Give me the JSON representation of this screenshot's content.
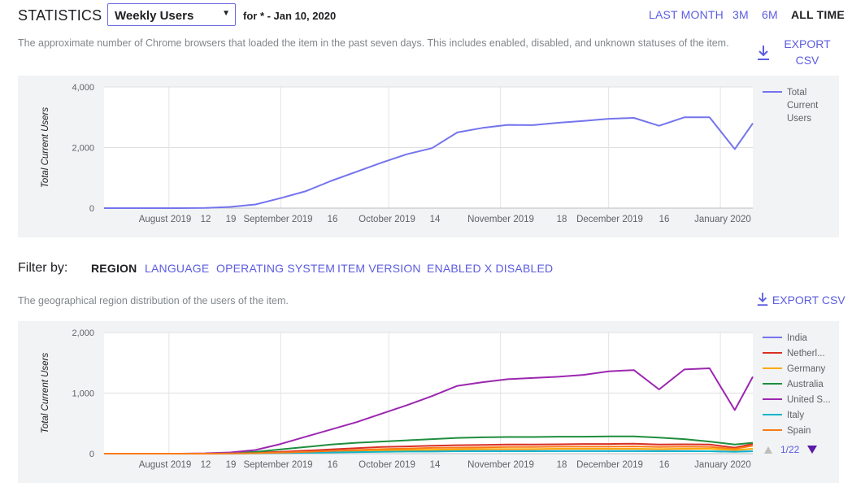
{
  "header": {
    "title": "STATISTICS",
    "metric_select": "Weekly Users",
    "for_text": "for * - Jan 10, 2020",
    "ranges": [
      "LAST MONTH",
      "3M",
      "6M",
      "ALL TIME"
    ],
    "active_range": "ALL TIME"
  },
  "section1": {
    "description": "The approximate number of Chrome browsers that loaded the item in the past seven days. This includes enabled, disabled, and unknown statuses of the item.",
    "export_label": "EXPORT CSV"
  },
  "filter": {
    "label": "Filter by:",
    "tabs": [
      "REGION",
      "LANGUAGE",
      "OPERATING SYSTEM",
      "ITEM VERSION",
      "ENABLED X DISABLED"
    ],
    "active_tab": "REGION"
  },
  "section2": {
    "description": "The geographical region distribution of the users of the item.",
    "export_label": "EXPORT CSV",
    "pager": "1/22"
  },
  "icons": {
    "download": "download-icon",
    "dropdown": "chevron-down-icon",
    "pager_up": "triangle-up-icon",
    "pager_down": "triangle-down-icon"
  },
  "colors": {
    "accent": "#5c5ce0",
    "panel_bg": "#f1f3f4"
  },
  "chart_data": [
    {
      "type": "line",
      "title": "",
      "xlabel": "",
      "ylabel": "Total Current Users",
      "ylim": [
        0,
        4000
      ],
      "y_ticks": [
        "0",
        "2,000",
        "4,000"
      ],
      "x_tick_labels": [
        "August 2019",
        "12",
        "19",
        "September 2019",
        "16",
        "October 2019",
        "14",
        "November 2019",
        "18",
        "December 2019",
        "16",
        "January 2020"
      ],
      "x": [
        "2019-07-14",
        "2019-07-21",
        "2019-07-28",
        "2019-08-04",
        "2019-08-11",
        "2019-08-18",
        "2019-08-25",
        "2019-09-01",
        "2019-09-08",
        "2019-09-15",
        "2019-09-22",
        "2019-09-29",
        "2019-10-06",
        "2019-10-13",
        "2019-10-20",
        "2019-10-27",
        "2019-11-03",
        "2019-11-10",
        "2019-11-17",
        "2019-11-24",
        "2019-12-01",
        "2019-12-08",
        "2019-12-15",
        "2019-12-22",
        "2019-12-29",
        "2020-01-05",
        "2020-01-10"
      ],
      "legend": "right",
      "series": [
        {
          "name": "Total Current Users",
          "color": "#7474ee",
          "values": [
            0,
            0,
            0,
            0,
            5,
            40,
            120,
            330,
            560,
            900,
            1200,
            1500,
            1780,
            1980,
            2500,
            2650,
            2750,
            2740,
            2820,
            2880,
            2950,
            2980,
            2720,
            3000,
            3000,
            1950,
            2800
          ]
        }
      ]
    },
    {
      "type": "line",
      "title": "",
      "xlabel": "",
      "ylabel": "Total Current Users",
      "ylim": [
        0,
        2000
      ],
      "y_ticks": [
        "0",
        "1,000",
        "2,000"
      ],
      "x_tick_labels": [
        "August 2019",
        "12",
        "19",
        "September 2019",
        "16",
        "October 2019",
        "14",
        "November 2019",
        "18",
        "December 2019",
        "16",
        "January 2020"
      ],
      "x": [
        "2019-07-14",
        "2019-07-21",
        "2019-07-28",
        "2019-08-04",
        "2019-08-11",
        "2019-08-18",
        "2019-08-25",
        "2019-09-01",
        "2019-09-08",
        "2019-09-15",
        "2019-09-22",
        "2019-09-29",
        "2019-10-06",
        "2019-10-13",
        "2019-10-20",
        "2019-10-27",
        "2019-11-03",
        "2019-11-10",
        "2019-11-17",
        "2019-11-24",
        "2019-12-01",
        "2019-12-08",
        "2019-12-15",
        "2019-12-22",
        "2019-12-29",
        "2020-01-05",
        "2020-01-10"
      ],
      "legend": "right",
      "series": [
        {
          "name": "India",
          "color": "#7474ee",
          "values": [
            0,
            0,
            0,
            0,
            0,
            5,
            10,
            15,
            20,
            25,
            30,
            35,
            40,
            40,
            45,
            45,
            45,
            45,
            45,
            45,
            45,
            45,
            45,
            45,
            40,
            35,
            40
          ]
        },
        {
          "name": "Netherl...",
          "color": "#d93025",
          "values": [
            0,
            0,
            0,
            0,
            0,
            5,
            15,
            30,
            50,
            70,
            90,
            110,
            120,
            130,
            140,
            145,
            150,
            150,
            155,
            160,
            160,
            165,
            150,
            155,
            150,
            100,
            160
          ]
        },
        {
          "name": "Germany",
          "color": "#f9ab00",
          "values": [
            0,
            0,
            0,
            0,
            0,
            3,
            8,
            15,
            25,
            35,
            45,
            55,
            60,
            65,
            70,
            75,
            75,
            75,
            80,
            80,
            80,
            80,
            75,
            80,
            80,
            60,
            80
          ]
        },
        {
          "name": "Australia",
          "color": "#1e8e3e",
          "values": [
            0,
            0,
            0,
            0,
            0,
            10,
            30,
            70,
            110,
            150,
            180,
            200,
            220,
            240,
            260,
            270,
            275,
            275,
            280,
            280,
            285,
            285,
            265,
            240,
            200,
            150,
            180
          ]
        },
        {
          "name": "United S...",
          "color": "#9c27b0",
          "values": [
            0,
            0,
            0,
            0,
            5,
            20,
            60,
            160,
            280,
            400,
            520,
            660,
            800,
            950,
            1120,
            1180,
            1230,
            1250,
            1270,
            1300,
            1360,
            1380,
            1060,
            1390,
            1410,
            720,
            1270
          ]
        },
        {
          "name": "Italy",
          "color": "#12b5cb",
          "values": [
            0,
            0,
            0,
            0,
            0,
            2,
            5,
            10,
            15,
            20,
            25,
            30,
            35,
            35,
            40,
            40,
            40,
            40,
            42,
            42,
            42,
            42,
            40,
            40,
            40,
            30,
            40
          ]
        },
        {
          "name": "Spain",
          "color": "#fa7b17",
          "values": [
            0,
            0,
            0,
            0,
            0,
            3,
            8,
            18,
            30,
            45,
            60,
            75,
            85,
            95,
            100,
            105,
            110,
            110,
            115,
            115,
            115,
            120,
            110,
            115,
            110,
            80,
            130
          ]
        }
      ]
    }
  ]
}
